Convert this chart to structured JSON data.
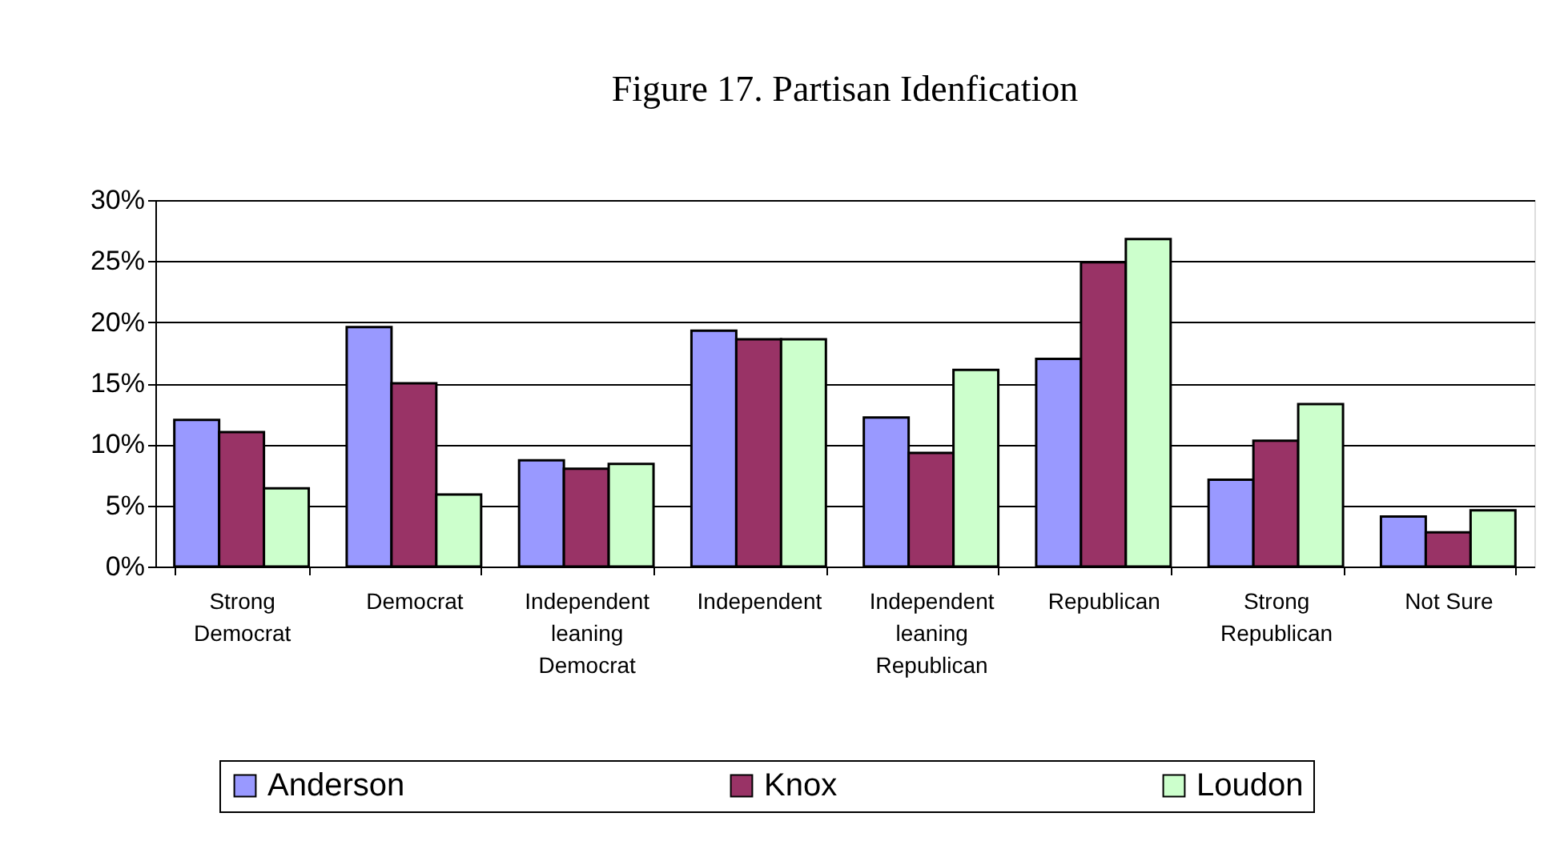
{
  "chart_data": {
    "type": "bar",
    "title": "Figure 17. Partisan Idenfication",
    "categories": [
      "Strong\nDemocrat",
      "Democrat",
      "Independent\nleaning\nDemocrat",
      "Independent",
      "Independent\nleaning\nRepublican",
      "Republican",
      "Strong\nRepublican",
      "Not Sure"
    ],
    "series": [
      {
        "name": "Anderson",
        "color": "#9999ff",
        "values": [
          12.0,
          19.6,
          8.7,
          19.3,
          12.2,
          17.0,
          7.1,
          4.1
        ]
      },
      {
        "name": "Knox",
        "color": "#993366",
        "values": [
          11.0,
          15.0,
          8.0,
          18.6,
          9.3,
          24.9,
          10.3,
          2.8
        ]
      },
      {
        "name": "Loudon",
        "color": "#ccffcc",
        "values": [
          6.4,
          5.9,
          8.4,
          18.6,
          16.1,
          26.8,
          13.3,
          4.6
        ]
      }
    ],
    "ylim": [
      0,
      30
    ],
    "yticks": [
      {
        "value": 0,
        "label": "0%"
      },
      {
        "value": 5,
        "label": "5%"
      },
      {
        "value": 10,
        "label": "10%"
      },
      {
        "value": 15,
        "label": "15%"
      },
      {
        "value": 20,
        "label": "20%"
      },
      {
        "value": 25,
        "label": "25%"
      },
      {
        "value": 30,
        "label": "30%"
      }
    ],
    "grid": "y",
    "legend": "bottom"
  }
}
